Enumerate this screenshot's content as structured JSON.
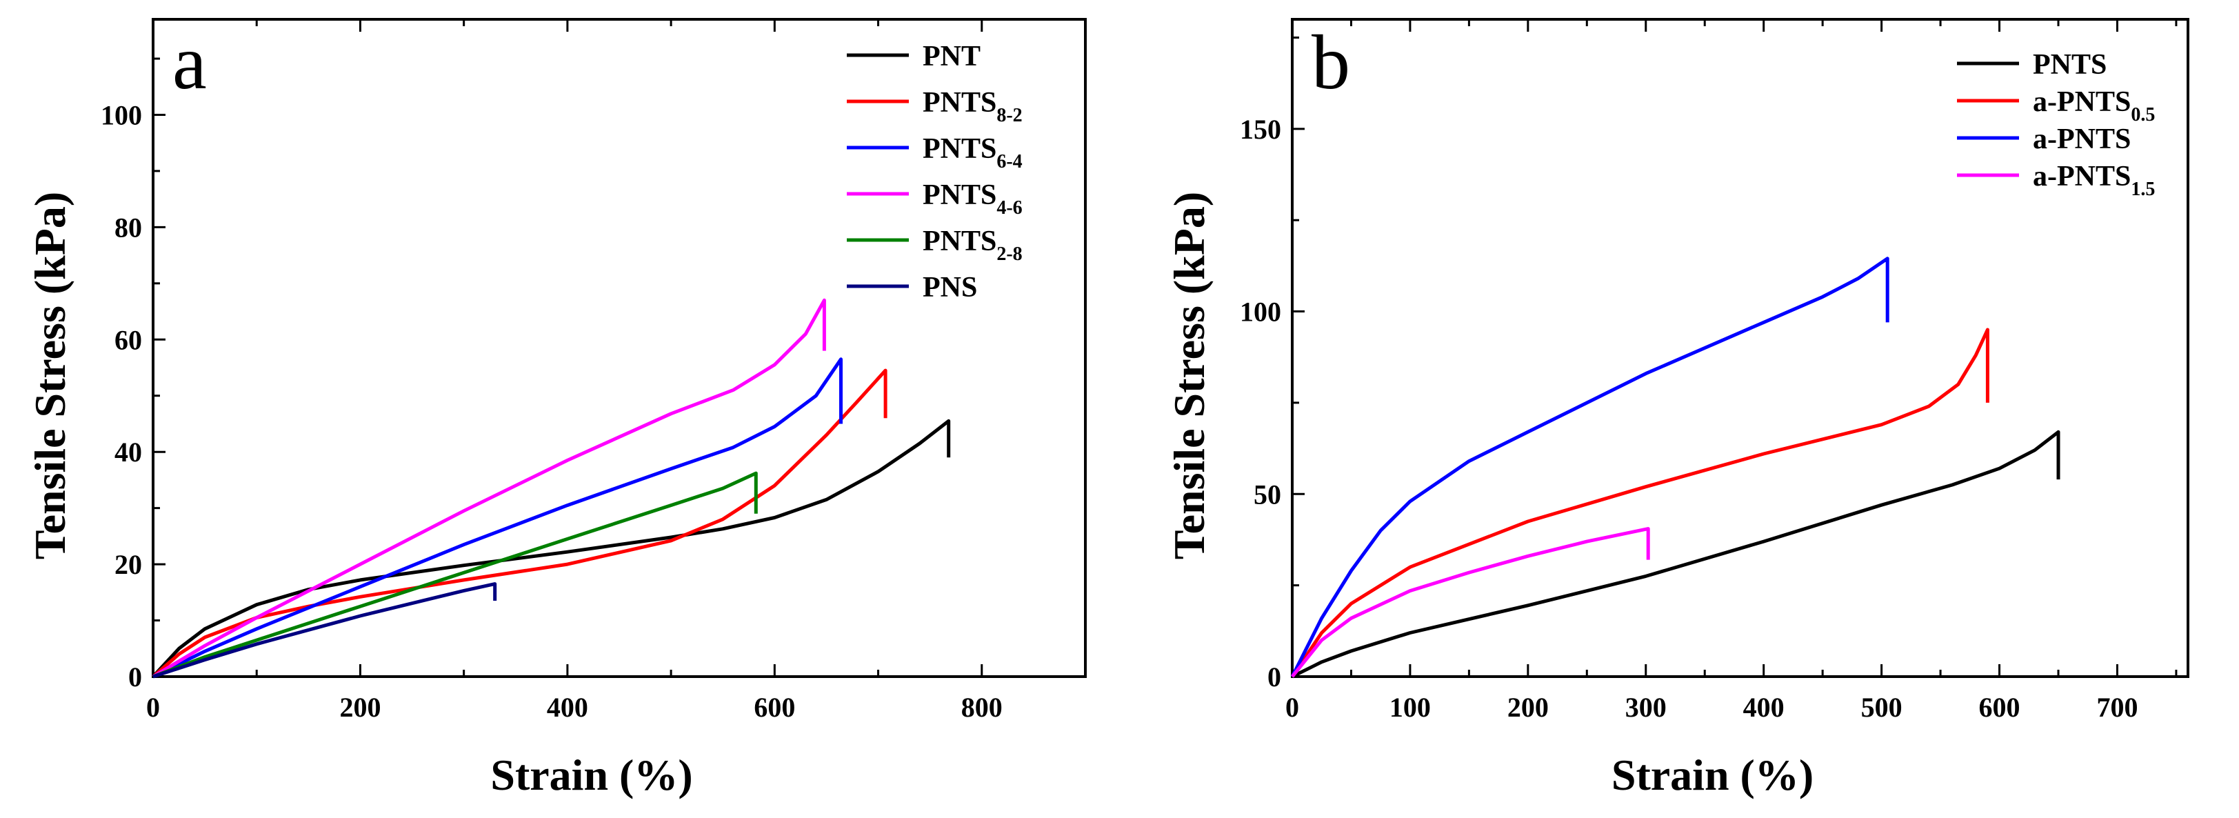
{
  "chart_data": [
    {
      "type": "line",
      "panel_label": "a",
      "xlabel": "Strain (%)",
      "ylabel": "Tensile Stress (kPa)",
      "xlim": [
        0,
        900
      ],
      "ylim": [
        0,
        117
      ],
      "xticks": [
        0,
        200,
        400,
        600,
        800
      ],
      "yticks": [
        0,
        20,
        40,
        60,
        80,
        100
      ],
      "legend_position": "top-right",
      "grid": false,
      "series": [
        {
          "name": "PNT",
          "name_main": "PNT",
          "name_sub": "",
          "color": "#000000",
          "x": [
            0,
            25,
            50,
            100,
            150,
            200,
            300,
            400,
            500,
            550,
            600,
            650,
            700,
            740,
            768
          ],
          "y": [
            0,
            5,
            8.5,
            12.8,
            15.5,
            17.2,
            19.8,
            22.2,
            24.8,
            26.3,
            28.3,
            31.5,
            36.5,
            41.5,
            45.5
          ],
          "drop_to": 39
        },
        {
          "name": "PNTS8-2",
          "name_main": "PNTS",
          "name_sub": "8-2",
          "color": "#ff0000",
          "x": [
            0,
            25,
            50,
            100,
            150,
            200,
            300,
            400,
            500,
            550,
            600,
            650,
            680,
            707
          ],
          "y": [
            0,
            4,
            7,
            10.5,
            12.5,
            14.2,
            17.2,
            20,
            24.2,
            28,
            34,
            43,
            49,
            54.5
          ],
          "drop_to": 46
        },
        {
          "name": "PNTS6-4",
          "name_main": "PNTS",
          "name_sub": "6-4",
          "color": "#0000ff",
          "x": [
            0,
            50,
            100,
            200,
            300,
            400,
            500,
            560,
            600,
            640,
            664
          ],
          "y": [
            0,
            4.5,
            8.5,
            16,
            23.5,
            30.5,
            37,
            40.8,
            44.5,
            50,
            56.5
          ],
          "drop_to": 45
        },
        {
          "name": "PNTS4-6",
          "name_main": "PNTS",
          "name_sub": "4-6",
          "color": "#ff00ff",
          "x": [
            0,
            50,
            100,
            200,
            300,
            400,
            500,
            560,
            600,
            630,
            648
          ],
          "y": [
            0,
            5.5,
            10.5,
            20,
            29.5,
            38.5,
            46.8,
            51,
            55.5,
            61,
            67
          ],
          "drop_to": 58
        },
        {
          "name": "PNTS2-8",
          "name_main": "PNTS",
          "name_sub": "2-8",
          "color": "#008000",
          "x": [
            0,
            50,
            100,
            200,
            300,
            400,
            500,
            550,
            582
          ],
          "y": [
            0,
            3.5,
            6.5,
            12.5,
            18.5,
            24.5,
            30.5,
            33.5,
            36.2
          ],
          "drop_to": 29
        },
        {
          "name": "PNS",
          "name_main": "PNS",
          "name_sub": "",
          "color": "#000080",
          "x": [
            0,
            50,
            100,
            200,
            300,
            330
          ],
          "y": [
            0,
            3,
            5.8,
            10.8,
            15.3,
            16.5
          ],
          "drop_to": 13.5
        }
      ]
    },
    {
      "type": "line",
      "panel_label": "b",
      "xlabel": "Strain (%)",
      "ylabel": "Tensile Stress (kPa)",
      "xlim": [
        0,
        760
      ],
      "ylim": [
        0,
        180
      ],
      "xticks": [
        0,
        100,
        200,
        300,
        400,
        500,
        600,
        700
      ],
      "yticks": [
        0,
        50,
        100,
        150
      ],
      "legend_position": "top-right",
      "grid": false,
      "series": [
        {
          "name": "PNTS",
          "name_main": "PNTS",
          "name_sub": "",
          "color": "#000000",
          "x": [
            0,
            25,
            50,
            100,
            200,
            300,
            400,
            500,
            560,
            600,
            630,
            650
          ],
          "y": [
            0,
            4,
            7,
            12,
            19.5,
            27.5,
            37,
            47,
            52.5,
            57,
            62,
            67
          ],
          "drop_to": 54
        },
        {
          "name": "a-PNTS0.5",
          "name_main": "a-PNTS",
          "name_sub": "0.5",
          "color": "#ff0000",
          "x": [
            0,
            25,
            50,
            100,
            200,
            300,
            400,
            500,
            540,
            565,
            580,
            590
          ],
          "y": [
            0,
            12,
            20,
            30,
            42.5,
            52,
            61,
            69,
            74,
            80,
            88,
            95
          ],
          "drop_to": 75
        },
        {
          "name": "a-PNTS",
          "name_main": "a-PNTS",
          "name_sub": "",
          "color": "#0000ff",
          "x": [
            0,
            25,
            50,
            75,
            100,
            150,
            200,
            300,
            400,
            450,
            480,
            505
          ],
          "y": [
            0,
            16,
            29,
            40,
            48,
            59,
            67,
            83,
            97,
            104,
            109,
            114.5
          ],
          "drop_to": 97
        },
        {
          "name": "a-PNTS1.5",
          "name_main": "a-PNTS",
          "name_sub": "1.5",
          "color": "#ff00ff",
          "x": [
            0,
            25,
            50,
            100,
            150,
            200,
            250,
            302
          ],
          "y": [
            0,
            10,
            16,
            23.5,
            28.5,
            33,
            37,
            40.5
          ],
          "drop_to": 32
        }
      ]
    }
  ]
}
